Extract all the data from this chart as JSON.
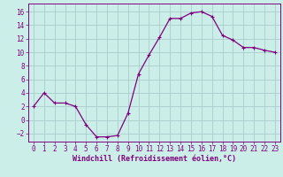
{
  "x": [
    0,
    1,
    2,
    3,
    4,
    5,
    6,
    7,
    8,
    9,
    10,
    11,
    12,
    13,
    14,
    15,
    16,
    17,
    18,
    19,
    20,
    21,
    22,
    23
  ],
  "y": [
    2,
    4,
    2.5,
    2.5,
    2,
    -0.7,
    -2.5,
    -2.5,
    -2.3,
    1,
    6.8,
    9.6,
    12.2,
    15,
    15,
    15.8,
    16,
    15.3,
    12.5,
    11.8,
    10.7,
    10.7,
    10.3,
    10
  ],
  "line_color": "#800080",
  "marker": "+",
  "marker_color": "#800080",
  "bg_color": "#cceee8",
  "grid_color": "#aacccc",
  "axis_color": "#800080",
  "tick_color": "#800080",
  "xlabel": "Windchill (Refroidissement éolien,°C)",
  "xlabel_color": "#800080",
  "xlim": [
    -0.5,
    23.5
  ],
  "ylim": [
    -3.2,
    17.2
  ],
  "yticks": [
    -2,
    0,
    2,
    4,
    6,
    8,
    10,
    12,
    14,
    16
  ],
  "xticks": [
    0,
    1,
    2,
    3,
    4,
    5,
    6,
    7,
    8,
    9,
    10,
    11,
    12,
    13,
    14,
    15,
    16,
    17,
    18,
    19,
    20,
    21,
    22,
    23
  ],
  "font_size": 5.5,
  "label_font_size": 6.0
}
